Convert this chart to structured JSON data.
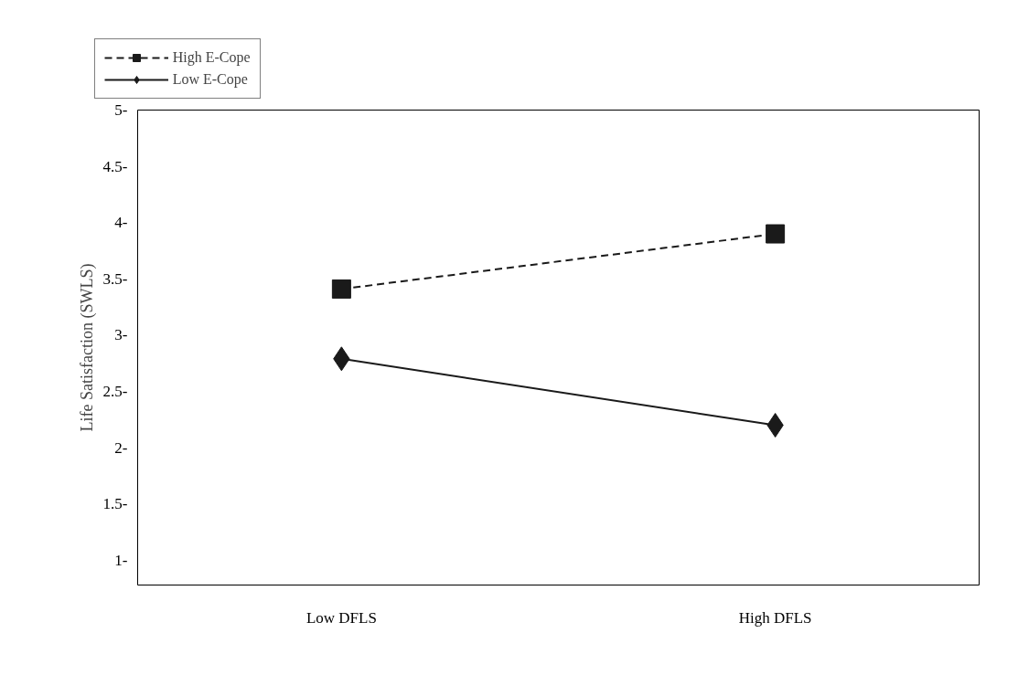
{
  "chart_data": {
    "type": "line",
    "ylabel": "Life Satisfaction (SWLS)",
    "categories": [
      "Low DFLS",
      "High DFLS"
    ],
    "series": [
      {
        "name": "High E-Cope",
        "color": "#1a1a1a",
        "values": [
          3.41,
          3.9
        ],
        "marker": "square",
        "line_style": "dashed"
      },
      {
        "name": "Low E-Cope",
        "color": "#1a1a1a",
        "values": [
          2.79,
          2.2
        ],
        "marker": "diamond",
        "line_style": "solid"
      }
    ],
    "ylim": [
      0.78,
      5
    ],
    "yticks": [
      {
        "value": 1,
        "label": "1-"
      },
      {
        "value": 1.5,
        "label": "1.5-"
      },
      {
        "value": 2,
        "label": "2-"
      },
      {
        "value": 2.5,
        "label": "2.5-"
      },
      {
        "value": 3,
        "label": "3-"
      },
      {
        "value": 3.5,
        "label": "3.5-"
      },
      {
        "value": 4,
        "label": "4-"
      },
      {
        "value": 4.5,
        "label": "4.5-"
      },
      {
        "value": 5,
        "label": "5-"
      }
    ],
    "grid": false,
    "legend": "top left"
  }
}
